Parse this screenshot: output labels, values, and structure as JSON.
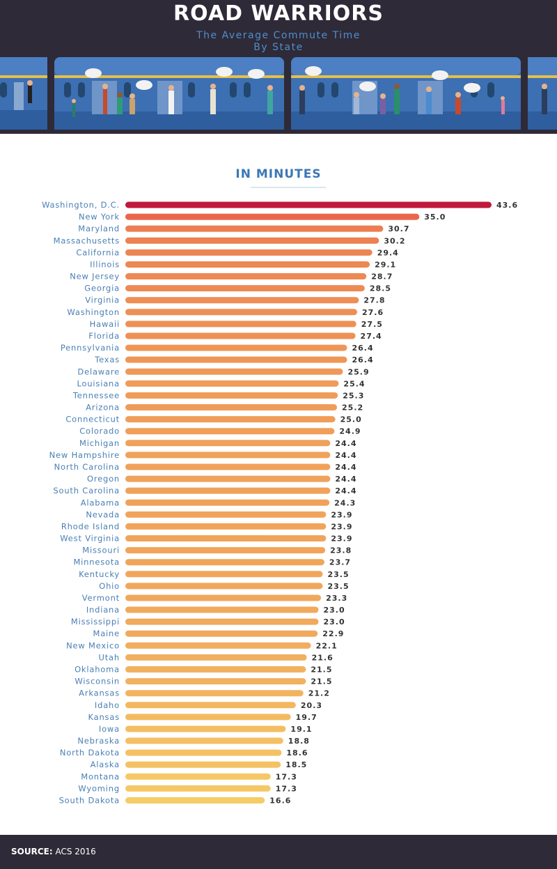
{
  "header": {
    "title": "ROAD WARRIORS",
    "subtitle_line1": "The Average Commute Time",
    "subtitle_line2": "By State"
  },
  "unit_label": "IN MINUTES",
  "footer": {
    "source_label": "SOURCE:",
    "source_value": "ACS 2016"
  },
  "colors": {
    "header_bg": "#2e2a38",
    "train_blue": "#3d6fb3",
    "top_bar": "#c0193c",
    "bar_high": "#e9664a",
    "bar_low": "#f5cc66"
  },
  "chart_data": {
    "type": "bar",
    "orientation": "horizontal",
    "title": "The Average Commute Time By State",
    "xlabel": "In Minutes",
    "ylabel": "",
    "xlim": [
      0,
      45
    ],
    "grid": false,
    "categories": [
      "Washington, D.C.",
      "New York",
      "Maryland",
      "Massachusetts",
      "California",
      "Illinois",
      "New Jersey",
      "Georgia",
      "Virginia",
      "Washington",
      "Hawaii",
      "Florida",
      "Pennsylvania",
      "Texas",
      "Delaware",
      "Louisiana",
      "Tennessee",
      "Arizona",
      "Connecticut",
      "Colorado",
      "Michigan",
      "New Hampshire",
      "North Carolina",
      "Oregon",
      "South Carolina",
      "Alabama",
      "Nevada",
      "Rhode Island",
      "West Virginia",
      "Missouri",
      "Minnesota",
      "Kentucky",
      "Ohio",
      "Vermont",
      "Indiana",
      "Mississippi",
      "Maine",
      "New Mexico",
      "Utah",
      "Oklahoma",
      "Wisconsin",
      "Arkansas",
      "Idaho",
      "Kansas",
      "Iowa",
      "Nebraska",
      "North Dakota",
      "Alaska",
      "Montana",
      "Wyoming",
      "South Dakota"
    ],
    "values": [
      43.6,
      35.0,
      30.7,
      30.2,
      29.4,
      29.1,
      28.7,
      28.5,
      27.8,
      27.6,
      27.5,
      27.4,
      26.4,
      26.4,
      25.9,
      25.4,
      25.3,
      25.2,
      25.0,
      24.9,
      24.4,
      24.4,
      24.4,
      24.4,
      24.4,
      24.3,
      23.9,
      23.9,
      23.9,
      23.8,
      23.7,
      23.5,
      23.5,
      23.3,
      23.0,
      23.0,
      22.9,
      22.1,
      21.6,
      21.5,
      21.5,
      21.2,
      20.3,
      19.7,
      19.1,
      18.8,
      18.6,
      18.5,
      17.3,
      17.3,
      16.6
    ],
    "value_labels": [
      "43.6",
      "35.0",
      "30.7",
      "30.2",
      "29.4",
      "29.1",
      "28.7",
      "28.5",
      "27.8",
      "27.6",
      "27.5",
      "27.4",
      "26.4",
      "26.4",
      "25.9",
      "25.4",
      "25.3",
      "25.2",
      "25.0",
      "24.9",
      "24.4",
      "24.4",
      "24.4",
      "24.4",
      "24.4",
      "24.3",
      "23.9",
      "23.9",
      "23.9",
      "23.8",
      "23.7",
      "23.5",
      "23.5",
      "23.3",
      "23.0",
      "23.0",
      "22.9",
      "22.1",
      "21.6",
      "21.5",
      "21.5",
      "21.2",
      "20.3",
      "19.7",
      "19.1",
      "18.8",
      "18.6",
      "18.5",
      "17.3",
      "17.3",
      "16.6"
    ]
  }
}
